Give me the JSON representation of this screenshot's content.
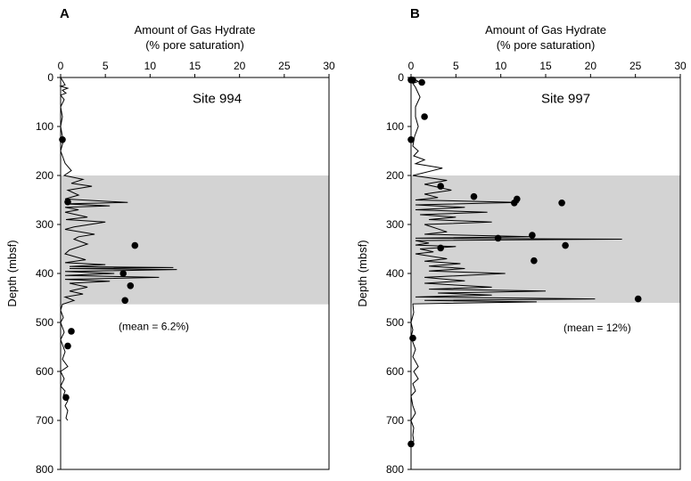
{
  "chart_data": [
    {
      "type": "line",
      "panel_label": "A",
      "xlabel_line1": "Amount of Gas Hydrate",
      "xlabel_line2": "(% pore saturation)",
      "ylabel": "Depth (mbsf)",
      "xlim": [
        0,
        30
      ],
      "ylim": [
        0,
        800
      ],
      "y_inverted": true,
      "x_axis_position": "top",
      "xticks": [
        0,
        5,
        10,
        15,
        20,
        25,
        30
      ],
      "yticks": [
        0,
        100,
        200,
        300,
        400,
        500,
        600,
        700,
        800
      ],
      "site_label": "Site 994",
      "mean_label": "(mean = 6.2%)",
      "shaded_depth_range": [
        200,
        463
      ],
      "shade_color": "#d3d3d3",
      "series": [
        {
          "kind": "line",
          "points": [
            [
              0,
              0
            ],
            [
              0.5,
              15
            ],
            [
              0,
              18
            ],
            [
              0.8,
              22
            ],
            [
              0.2,
              26
            ],
            [
              0.6,
              32
            ],
            [
              0,
              36
            ],
            [
              0.4,
              45
            ],
            [
              0,
              60
            ],
            [
              0.2,
              80
            ],
            [
              0,
              100
            ],
            [
              0.3,
              130
            ],
            [
              0,
              150
            ],
            [
              0.5,
              175
            ],
            [
              1.2,
              190
            ],
            [
              0.4,
              200
            ],
            [
              2.5,
              208
            ],
            [
              1.2,
              216
            ],
            [
              3.5,
              222
            ],
            [
              0.8,
              230
            ],
            [
              2.0,
              240
            ],
            [
              0.5,
              248
            ],
            [
              7.5,
              255
            ],
            [
              0.5,
              258
            ],
            [
              5.5,
              262
            ],
            [
              0.5,
              265
            ],
            [
              2.0,
              270
            ],
            [
              0.5,
              275
            ],
            [
              3.0,
              285
            ],
            [
              0.6,
              290
            ],
            [
              5.0,
              295
            ],
            [
              1.5,
              305
            ],
            [
              0.5,
              310
            ],
            [
              3.8,
              320
            ],
            [
              2.0,
              325
            ],
            [
              1.5,
              330
            ],
            [
              3.0,
              340
            ],
            [
              1.0,
              352
            ],
            [
              0.5,
              360
            ],
            [
              2.8,
              372
            ],
            [
              0.5,
              378
            ],
            [
              5.0,
              382
            ],
            [
              1.0,
              386
            ],
            [
              12.6,
              388
            ],
            [
              1.0,
              390
            ],
            [
              13.0,
              392
            ],
            [
              0.5,
              396
            ],
            [
              6.0,
              400
            ],
            [
              0.5,
              404
            ],
            [
              11.0,
              408
            ],
            [
              0.5,
              412
            ],
            [
              5.5,
              416
            ],
            [
              1.0,
              420
            ],
            [
              3.0,
              428
            ],
            [
              1.0,
              436
            ],
            [
              2.5,
              442
            ],
            [
              0.5,
              448
            ],
            [
              1.5,
              455
            ],
            [
              0.2,
              463
            ],
            [
              0,
              475
            ],
            [
              0.3,
              490
            ],
            [
              0,
              500
            ],
            [
              0.4,
              520
            ],
            [
              0,
              535
            ],
            [
              0.3,
              550
            ],
            [
              0.5,
              560
            ],
            [
              0.2,
              575
            ],
            [
              0.8,
              590
            ],
            [
              0,
              600
            ],
            [
              0.4,
              615
            ],
            [
              0,
              630
            ],
            [
              0.5,
              640
            ],
            [
              0.3,
              650
            ],
            [
              0.8,
              660
            ],
            [
              0.5,
              670
            ],
            [
              0.8,
              680
            ],
            [
              0.6,
              695
            ],
            [
              0.8,
              700
            ]
          ]
        },
        {
          "kind": "scatter",
          "points": [
            [
              0.2,
              127
            ],
            [
              0.8,
              254
            ],
            [
              8.3,
              343
            ],
            [
              7.0,
              400
            ],
            [
              7.8,
              425
            ],
            [
              7.2,
              455
            ],
            [
              1.2,
              518
            ],
            [
              0.8,
              548
            ],
            [
              0.6,
              653
            ]
          ]
        }
      ]
    },
    {
      "type": "line",
      "panel_label": "B",
      "xlabel_line1": "Amount of Gas Hydrate",
      "xlabel_line2": "(% pore saturation)",
      "ylabel": "Depth (mbsf)",
      "xlim": [
        0,
        30
      ],
      "ylim": [
        0,
        800
      ],
      "y_inverted": true,
      "x_axis_position": "top",
      "xticks": [
        0,
        5,
        10,
        15,
        20,
        25,
        30
      ],
      "yticks": [
        0,
        100,
        200,
        300,
        400,
        500,
        600,
        700,
        800
      ],
      "site_label": "Site 997",
      "mean_label": "(mean = 12%)",
      "shaded_depth_range": [
        200,
        460
      ],
      "shade_color": "#d3d3d3",
      "series": [
        {
          "kind": "line",
          "points": [
            [
              0,
              0
            ],
            [
              0.8,
              8
            ],
            [
              0.2,
              12
            ],
            [
              0.5,
              20
            ],
            [
              1.0,
              40
            ],
            [
              0.5,
              60
            ],
            [
              0.5,
              80
            ],
            [
              0.8,
              100
            ],
            [
              0.4,
              120
            ],
            [
              0.2,
              140
            ],
            [
              0.8,
              150
            ],
            [
              0.3,
              160
            ],
            [
              1.5,
              168
            ],
            [
              0.5,
              176
            ],
            [
              3.5,
              185
            ],
            [
              0.2,
              200
            ],
            [
              4.0,
              210
            ],
            [
              1.5,
              218
            ],
            [
              4.5,
              230
            ],
            [
              1.5,
              238
            ],
            [
              3.0,
              245
            ],
            [
              0.5,
              250
            ],
            [
              12.0,
              255
            ],
            [
              0.5,
              260
            ],
            [
              6.0,
              265
            ],
            [
              0.5,
              270
            ],
            [
              8.5,
              275
            ],
            [
              1.0,
              280
            ],
            [
              5.0,
              285
            ],
            [
              2.0,
              290
            ],
            [
              9.0,
              295
            ],
            [
              1.5,
              300
            ],
            [
              4.0,
              315
            ],
            [
              1.5,
              320
            ],
            [
              13.5,
              325
            ],
            [
              0.5,
              328
            ],
            [
              23.5,
              330
            ],
            [
              0.5,
              333
            ],
            [
              2.0,
              338
            ],
            [
              0.5,
              342
            ],
            [
              5.0,
              345
            ],
            [
              1.0,
              350
            ],
            [
              2.5,
              356
            ],
            [
              0.5,
              360
            ],
            [
              4.0,
              370
            ],
            [
              1.5,
              375
            ],
            [
              5.5,
              380
            ],
            [
              2.0,
              385
            ],
            [
              6.0,
              390
            ],
            [
              2.0,
              395
            ],
            [
              10.5,
              400
            ],
            [
              1.5,
              408
            ],
            [
              6.0,
              415
            ],
            [
              1.5,
              420
            ],
            [
              9.0,
              428
            ],
            [
              2.0,
              432
            ],
            [
              15.0,
              436
            ],
            [
              3.0,
              440
            ],
            [
              9.0,
              444
            ],
            [
              0.5,
              448
            ],
            [
              20.5,
              452
            ],
            [
              1.5,
              455
            ],
            [
              14.0,
              458
            ],
            [
              0.2,
              462
            ],
            [
              0.3,
              480
            ],
            [
              0,
              500
            ],
            [
              0.2,
              515
            ],
            [
              0,
              530
            ],
            [
              0.5,
              555
            ],
            [
              0.2,
              570
            ],
            [
              0.8,
              590
            ],
            [
              0.3,
              600
            ],
            [
              0.8,
              615
            ],
            [
              0.2,
              625
            ],
            [
              0.5,
              640
            ],
            [
              0,
              650
            ],
            [
              0.2,
              670
            ],
            [
              0.5,
              685
            ],
            [
              0,
              700
            ],
            [
              0.3,
              715
            ],
            [
              0.2,
              730
            ],
            [
              0.3,
              742
            ],
            [
              0,
              750
            ]
          ]
        },
        {
          "kind": "scatter",
          "points": [
            [
              0,
              5
            ],
            [
              0.2,
              5
            ],
            [
              1.2,
              10
            ],
            [
              1.5,
              80
            ],
            [
              0,
              127
            ],
            [
              3.3,
              222
            ],
            [
              7.0,
              243
            ],
            [
              11.8,
              248
            ],
            [
              11.5,
              256
            ],
            [
              16.8,
              256
            ],
            [
              13.5,
              322
            ],
            [
              9.7,
              328
            ],
            [
              17.2,
              343
            ],
            [
              3.3,
              348
            ],
            [
              13.7,
              374
            ],
            [
              25.3,
              452
            ],
            [
              0.2,
              532
            ],
            [
              0,
              748
            ]
          ]
        }
      ]
    }
  ]
}
